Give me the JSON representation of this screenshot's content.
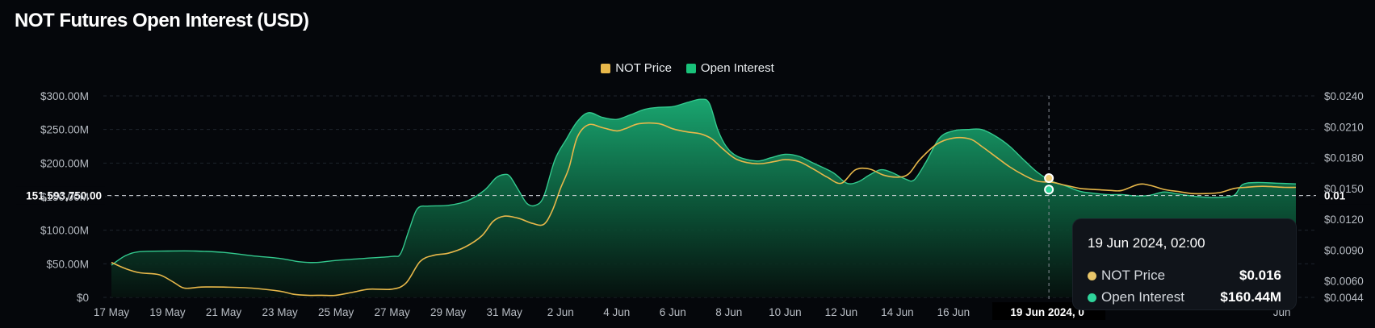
{
  "title": "NOT Futures Open Interest (USD)",
  "legend": [
    {
      "label": "NOT Price",
      "color": "#e8b84a"
    },
    {
      "label": "Open Interest",
      "color": "#19c27a"
    }
  ],
  "crosshair": {
    "left_value": "151,593,750.00",
    "right_value": "0.01"
  },
  "tooltip": {
    "date": "19 Jun 2024, 02:00",
    "rows": [
      {
        "label": "NOT Price",
        "value": "$0.016",
        "color": "#e8c66a"
      },
      {
        "label": "Open Interest",
        "value": "$160.44M",
        "color": "#2fd49b"
      }
    ]
  },
  "chart_data": {
    "type": "area",
    "title": "NOT Futures Open Interest (USD)",
    "grid": true,
    "legend_position": "top-center",
    "x_ticks": [
      "17 May",
      "19 May",
      "21 May",
      "23 May",
      "25 May",
      "27 May",
      "29 May",
      "31 May",
      "2 Jun",
      "4 Jun",
      "6 Jun",
      "8 Jun",
      "10 Jun",
      "12 Jun",
      "14 Jun",
      "16 Jun",
      "19 Jun 2024, 0",
      "Jun"
    ],
    "y_left_ticks": [
      "$0",
      "$50.00M",
      "$100.00M",
      "$150.00M",
      "$200.00M",
      "$250.00M",
      "$300.00M"
    ],
    "y_left_range": [
      0,
      300
    ],
    "y_right_ticks": [
      "$0.0044",
      "$0.0060",
      "$0.0090",
      "$0.0120",
      "$0.0150",
      "$0.0180",
      "$0.0210",
      "$0.0240"
    ],
    "y_right_range": [
      0.0044,
      0.024
    ],
    "x_range_days": [
      0,
      42.4
    ],
    "series": [
      {
        "name": "Open Interest",
        "unit": "USD millions",
        "axis": "left",
        "color": "#19c27a",
        "points": [
          [
            0,
            48
          ],
          [
            0.5,
            62
          ],
          [
            1,
            68
          ],
          [
            2,
            69
          ],
          [
            3,
            69
          ],
          [
            4,
            67
          ],
          [
            5,
            62
          ],
          [
            6,
            58
          ],
          [
            6.7,
            53
          ],
          [
            7.3,
            52
          ],
          [
            8,
            55
          ],
          [
            9,
            58
          ],
          [
            10,
            61
          ],
          [
            10.3,
            65
          ],
          [
            10.6,
            100
          ],
          [
            10.9,
            132
          ],
          [
            11.3,
            136
          ],
          [
            12,
            137
          ],
          [
            12.7,
            144
          ],
          [
            13.3,
            160
          ],
          [
            13.7,
            178
          ],
          [
            14,
            183
          ],
          [
            14.2,
            180
          ],
          [
            14.5,
            160
          ],
          [
            14.8,
            140
          ],
          [
            15.1,
            137
          ],
          [
            15.4,
            150
          ],
          [
            15.8,
            205
          ],
          [
            16.2,
            235
          ],
          [
            16.6,
            262
          ],
          [
            17,
            275
          ],
          [
            17.5,
            268
          ],
          [
            18,
            265
          ],
          [
            18.5,
            272
          ],
          [
            19,
            280
          ],
          [
            19.5,
            283
          ],
          [
            20,
            284
          ],
          [
            20.5,
            290
          ],
          [
            21,
            295
          ],
          [
            21.3,
            289
          ],
          [
            21.6,
            250
          ],
          [
            21.9,
            225
          ],
          [
            22.3,
            210
          ],
          [
            23,
            203
          ],
          [
            23.5,
            208
          ],
          [
            24,
            213
          ],
          [
            24.5,
            210
          ],
          [
            25,
            200
          ],
          [
            25.7,
            186
          ],
          [
            26.2,
            170
          ],
          [
            26.6,
            172
          ],
          [
            27,
            182
          ],
          [
            27.4,
            190
          ],
          [
            27.8,
            186
          ],
          [
            28.3,
            176
          ],
          [
            28.6,
            175
          ],
          [
            29,
            200
          ],
          [
            29.5,
            237
          ],
          [
            30,
            248
          ],
          [
            30.5,
            250
          ],
          [
            31,
            250
          ],
          [
            31.5,
            240
          ],
          [
            32,
            225
          ],
          [
            32.5,
            205
          ],
          [
            33,
            186
          ],
          [
            33.5,
            173
          ],
          [
            34,
            166
          ],
          [
            34.5,
            158
          ],
          [
            35,
            155
          ],
          [
            35.5,
            153
          ],
          [
            36,
            153
          ],
          [
            36.5,
            151
          ],
          [
            37,
            152
          ],
          [
            37.5,
            157
          ],
          [
            38,
            154
          ],
          [
            38.5,
            151
          ],
          [
            39,
            149
          ],
          [
            39.5,
            149
          ],
          [
            40,
            152
          ],
          [
            40.3,
            168
          ],
          [
            40.8,
            171
          ],
          [
            41.5,
            170
          ],
          [
            42.2,
            169
          ]
        ]
      },
      {
        "name": "NOT Price",
        "unit": "USD",
        "axis": "right",
        "color": "#e8b84a",
        "points": [
          [
            0,
            0.0078
          ],
          [
            0.5,
            0.0072
          ],
          [
            1,
            0.0068
          ],
          [
            1.7,
            0.0066
          ],
          [
            2.2,
            0.0059
          ],
          [
            2.6,
            0.0053
          ],
          [
            3.2,
            0.0054
          ],
          [
            4,
            0.0054
          ],
          [
            5,
            0.0053
          ],
          [
            6,
            0.005
          ],
          [
            6.5,
            0.0047
          ],
          [
            7,
            0.0046
          ],
          [
            7.5,
            0.0046
          ],
          [
            8,
            0.0046
          ],
          [
            8.6,
            0.0049
          ],
          [
            9.2,
            0.0052
          ],
          [
            10,
            0.0052
          ],
          [
            10.5,
            0.0058
          ],
          [
            11,
            0.0079
          ],
          [
            11.5,
            0.0085
          ],
          [
            12,
            0.0087
          ],
          [
            12.6,
            0.0093
          ],
          [
            13.2,
            0.0104
          ],
          [
            13.6,
            0.0118
          ],
          [
            14,
            0.0123
          ],
          [
            14.5,
            0.0121
          ],
          [
            15,
            0.0116
          ],
          [
            15.4,
            0.0115
          ],
          [
            15.7,
            0.0128
          ],
          [
            16,
            0.015
          ],
          [
            16.3,
            0.017
          ],
          [
            16.6,
            0.02
          ],
          [
            17,
            0.0212
          ],
          [
            17.5,
            0.0209
          ],
          [
            18,
            0.0206
          ],
          [
            18.3,
            0.0208
          ],
          [
            18.8,
            0.0213
          ],
          [
            19.5,
            0.0213
          ],
          [
            20,
            0.0208
          ],
          [
            20.5,
            0.0205
          ],
          [
            21,
            0.0203
          ],
          [
            21.4,
            0.0198
          ],
          [
            21.8,
            0.0188
          ],
          [
            22.3,
            0.0178
          ],
          [
            23,
            0.0174
          ],
          [
            23.6,
            0.0176
          ],
          [
            24,
            0.0178
          ],
          [
            24.5,
            0.0176
          ],
          [
            25,
            0.0169
          ],
          [
            25.5,
            0.0161
          ],
          [
            26,
            0.0155
          ],
          [
            26.5,
            0.0168
          ],
          [
            27,
            0.0169
          ],
          [
            27.5,
            0.0163
          ],
          [
            28,
            0.0161
          ],
          [
            28.4,
            0.0164
          ],
          [
            28.8,
            0.0178
          ],
          [
            29.4,
            0.0193
          ],
          [
            30,
            0.0199
          ],
          [
            30.6,
            0.0198
          ],
          [
            31,
            0.0191
          ],
          [
            31.5,
            0.0181
          ],
          [
            32,
            0.0171
          ],
          [
            32.5,
            0.0163
          ],
          [
            33,
            0.0157
          ],
          [
            33.5,
            0.0156
          ],
          [
            34,
            0.0153
          ],
          [
            34.5,
            0.015
          ],
          [
            35,
            0.0149
          ],
          [
            35.6,
            0.0148
          ],
          [
            36,
            0.0148
          ],
          [
            36.6,
            0.0154
          ],
          [
            37,
            0.0153
          ],
          [
            37.5,
            0.0149
          ],
          [
            38,
            0.0147
          ],
          [
            38.5,
            0.0145
          ],
          [
            39,
            0.0145
          ],
          [
            39.5,
            0.0146
          ],
          [
            40,
            0.015
          ],
          [
            40.4,
            0.0151
          ],
          [
            41,
            0.0152
          ],
          [
            41.8,
            0.0151
          ],
          [
            42.2,
            0.0151
          ]
        ]
      }
    ],
    "hover": {
      "x": 33.4,
      "date": "19 Jun 2024, 02:00",
      "open_interest": 160.44,
      "price": 0.016
    }
  }
}
